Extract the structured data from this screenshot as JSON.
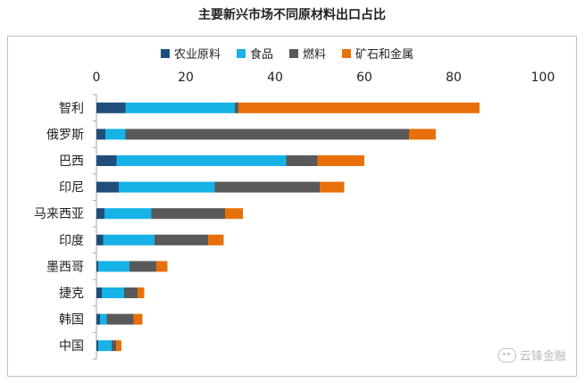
{
  "chart_data": {
    "type": "bar",
    "orientation": "horizontal",
    "stacked": true,
    "title": "主要新兴市场不同原材料出口占比",
    "categories": [
      "智利",
      "俄罗斯",
      "巴西",
      "印尼",
      "马来西亚",
      "印度",
      "墨西哥",
      "捷克",
      "韩国",
      "中国"
    ],
    "series": [
      {
        "name": "农业原料",
        "color": "#1f4e79",
        "values": [
          6.5,
          2.0,
          4.5,
          5.0,
          1.8,
          1.5,
          0.4,
          1.2,
          0.8,
          0.4
        ]
      },
      {
        "name": "食品",
        "color": "#17b2e6",
        "values": [
          24.5,
          4.5,
          38.0,
          21.5,
          10.5,
          11.5,
          7.0,
          5.0,
          1.5,
          3.0
        ]
      },
      {
        "name": "燃料",
        "color": "#595959",
        "values": [
          0.8,
          63.5,
          7.0,
          23.5,
          16.5,
          12.0,
          6.0,
          3.0,
          6.0,
          1.0
        ]
      },
      {
        "name": "矿石和金属",
        "color": "#e8700a",
        "values": [
          54.0,
          6.0,
          10.5,
          5.5,
          4.0,
          3.5,
          2.5,
          1.5,
          2.0,
          1.2
        ]
      }
    ],
    "xlim": [
      0,
      100
    ],
    "xticks": [
      "0",
      "20",
      "40",
      "60",
      "80",
      "100"
    ],
    "legend_position": "top",
    "grid": false
  },
  "watermark": "云锋金融"
}
